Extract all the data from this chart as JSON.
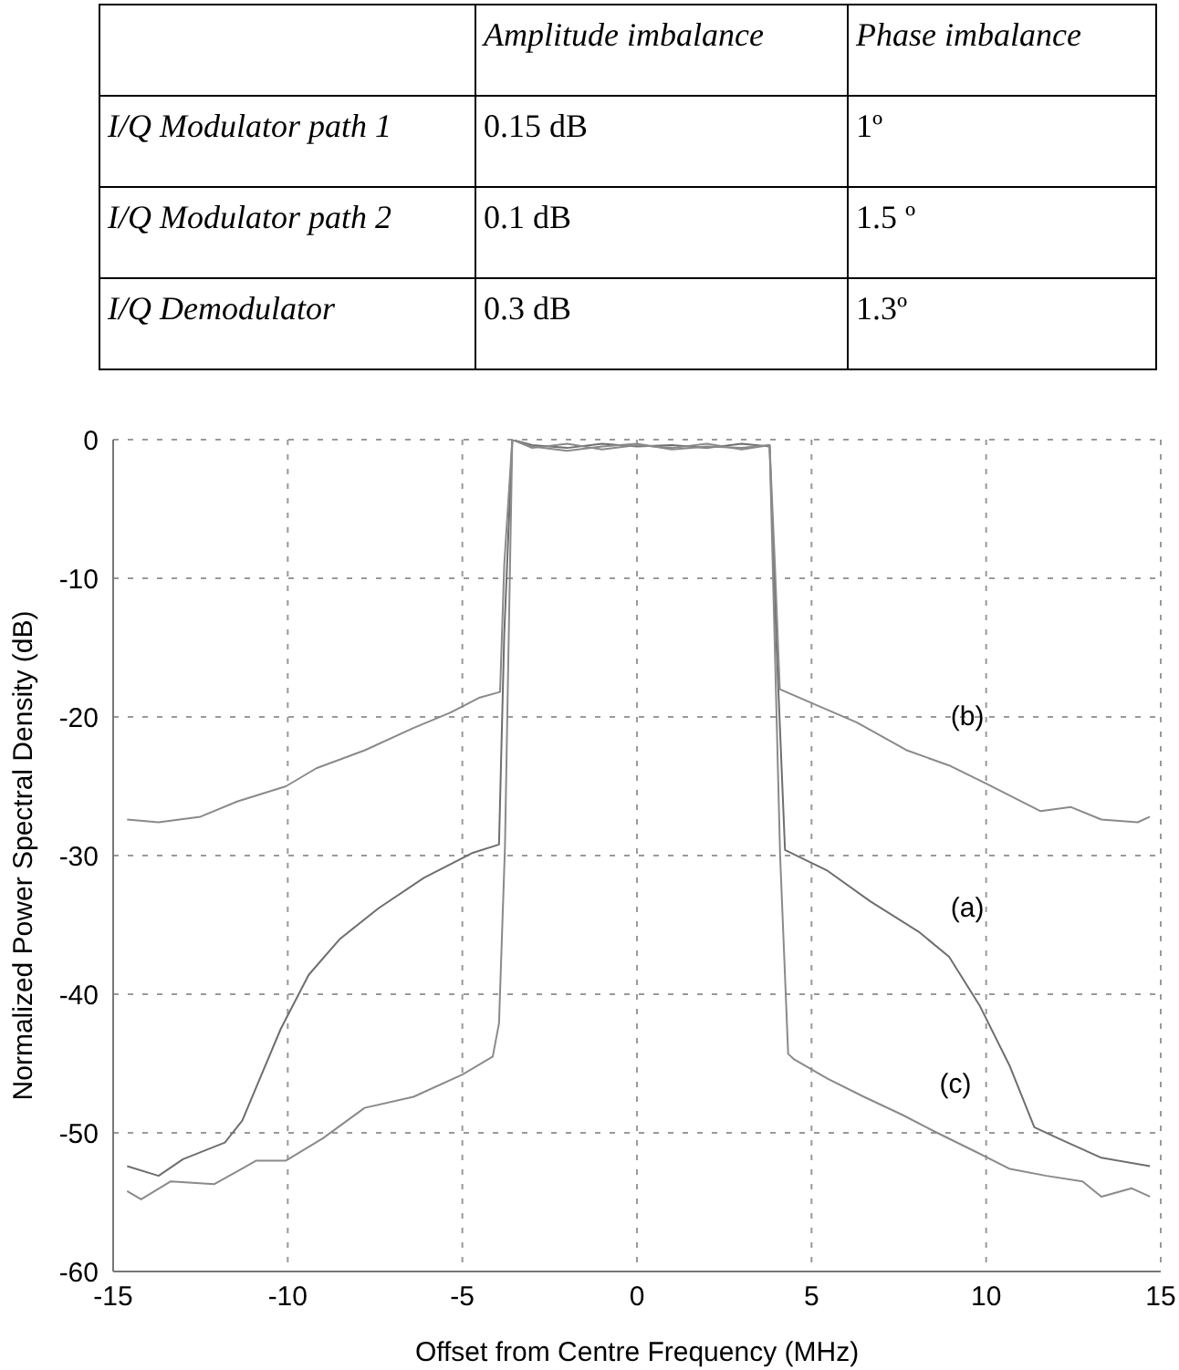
{
  "chart_data": {
    "type": "line",
    "xlabel": "Offset from Centre Frequency (MHz)",
    "ylabel": "Normalized Power Spectral Density (dB)",
    "xlim": [
      -15,
      15
    ],
    "xticks": [
      -15,
      -10,
      -5,
      0,
      5,
      10,
      15
    ],
    "ylim": [
      -60,
      0
    ],
    "yticks": [
      -60,
      -50,
      -40,
      -30,
      -20,
      -10,
      0
    ],
    "grid": true,
    "line_style": "solid",
    "marker": "none",
    "series": [
      {
        "name": "(a)",
        "color": "#6e6e6e",
        "x": [
          -14.6,
          -13.7,
          -13.0,
          -11.8,
          -11.3,
          -10.8,
          -10.2,
          -9.4,
          -8.5,
          -7.4,
          -6.1,
          -4.7,
          -3.95,
          -3.8,
          -3.57,
          -3,
          -2,
          -1,
          0,
          1,
          2,
          3,
          3.8,
          4.0,
          4.24,
          5.46,
          6.68,
          8.07,
          8.94,
          9.81,
          10.68,
          11.38,
          12.07,
          13.3,
          14.69
        ],
        "values": [
          -52.4,
          -53.1,
          -51.9,
          -50.7,
          -49.1,
          -46.1,
          -42.5,
          -38.6,
          -36.0,
          -33.8,
          -31.6,
          -29.8,
          -29.2,
          -14,
          0,
          -0.4,
          -0.6,
          -0.3,
          -0.5,
          -0.4,
          -0.6,
          -0.3,
          -0.5,
          -15,
          -29.6,
          -31.1,
          -33.3,
          -35.5,
          -37.3,
          -40.8,
          -45.2,
          -49.6,
          -50.4,
          -51.8,
          -52.4
        ]
      },
      {
        "name": "(b)",
        "color": "#8a8a8a",
        "x": [
          -14.6,
          -13.7,
          -12.5,
          -11.45,
          -10.05,
          -9.18,
          -7.79,
          -6.4,
          -5.35,
          -4.5,
          -3.92,
          -3.8,
          -3.57,
          -3,
          -2,
          -1,
          0,
          1,
          2,
          3,
          3.8,
          3.95,
          4.09,
          5.1,
          6.3,
          7.72,
          8.94,
          9.99,
          11.56,
          12.43,
          13.3,
          14.34,
          14.69
        ],
        "values": [
          -27.4,
          -27.6,
          -27.2,
          -26.1,
          -25.0,
          -23.7,
          -22.4,
          -20.8,
          -19.7,
          -18.6,
          -18.2,
          -9,
          0,
          -0.6,
          -0.3,
          -0.7,
          -0.4,
          -0.6,
          -0.3,
          -0.7,
          -0.4,
          -9,
          -18.0,
          -19.1,
          -20.4,
          -22.4,
          -23.5,
          -24.8,
          -26.8,
          -26.5,
          -27.4,
          -27.6,
          -27.2
        ]
      },
      {
        "name": "(c)",
        "color": "#8a8a8a",
        "x": [
          -14.6,
          -14.2,
          -13.35,
          -12.1,
          -10.9,
          -10.05,
          -9.0,
          -7.8,
          -6.4,
          -5.0,
          -4.13,
          -3.95,
          -3.78,
          -3.57,
          -3,
          -2,
          -1,
          0,
          1,
          2,
          3,
          3.8,
          4.1,
          4.33,
          4.5,
          5.46,
          6.5,
          7.6,
          8.6,
          9.65,
          10.68,
          11.73,
          12.76,
          13.3,
          14.17,
          14.69
        ],
        "values": [
          -54.2,
          -54.8,
          -53.5,
          -53.7,
          -52.0,
          -52.0,
          -50.4,
          -48.2,
          -47.4,
          -45.8,
          -44.5,
          -42.1,
          -29.4,
          0,
          -0.5,
          -0.8,
          -0.5,
          -0.3,
          -0.7,
          -0.5,
          -0.6,
          -0.4,
          -30,
          -44.3,
          -44.7,
          -46.1,
          -47.4,
          -48.7,
          -50.0,
          -51.3,
          -52.6,
          -53.1,
          -53.5,
          -54.6,
          -54.0,
          -54.6
        ]
      }
    ],
    "annotations": [
      "Amplitude imbalance",
      "Phase imbalance",
      "I/Q Modulator path 1",
      "0.15 dB",
      "1º",
      "I/Q Modulator path 2",
      "0.1 dB",
      "1.5 º",
      "I/Q Demodulator",
      "0.3 dB",
      "1.3º"
    ]
  }
}
